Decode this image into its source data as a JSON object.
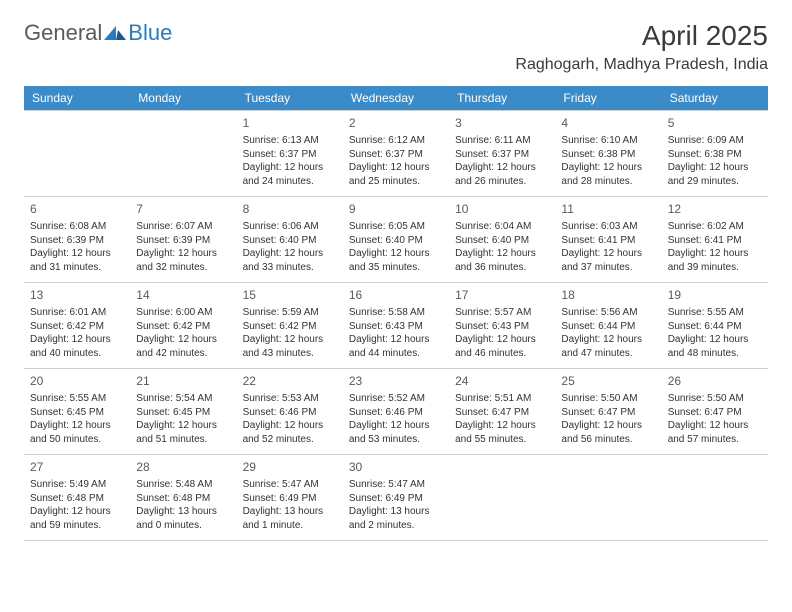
{
  "logo": {
    "text1": "General",
    "text2": "Blue"
  },
  "title": {
    "month": "April 2025",
    "location": "Raghogarh, Madhya Pradesh, India"
  },
  "colors": {
    "header_bg": "#3b8bc9",
    "header_text": "#ffffff",
    "border": "#cfcfcf",
    "body_text": "#333333",
    "daynum": "#5a5a5a",
    "logo_gray": "#5a5a5a",
    "logo_blue": "#2b7bbf"
  },
  "weekdays": [
    "Sunday",
    "Monday",
    "Tuesday",
    "Wednesday",
    "Thursday",
    "Friday",
    "Saturday"
  ],
  "weeks": [
    [
      null,
      null,
      {
        "day": "1",
        "sunrise": "Sunrise: 6:13 AM",
        "sunset": "Sunset: 6:37 PM",
        "daylight1": "Daylight: 12 hours",
        "daylight2": "and 24 minutes."
      },
      {
        "day": "2",
        "sunrise": "Sunrise: 6:12 AM",
        "sunset": "Sunset: 6:37 PM",
        "daylight1": "Daylight: 12 hours",
        "daylight2": "and 25 minutes."
      },
      {
        "day": "3",
        "sunrise": "Sunrise: 6:11 AM",
        "sunset": "Sunset: 6:37 PM",
        "daylight1": "Daylight: 12 hours",
        "daylight2": "and 26 minutes."
      },
      {
        "day": "4",
        "sunrise": "Sunrise: 6:10 AM",
        "sunset": "Sunset: 6:38 PM",
        "daylight1": "Daylight: 12 hours",
        "daylight2": "and 28 minutes."
      },
      {
        "day": "5",
        "sunrise": "Sunrise: 6:09 AM",
        "sunset": "Sunset: 6:38 PM",
        "daylight1": "Daylight: 12 hours",
        "daylight2": "and 29 minutes."
      }
    ],
    [
      {
        "day": "6",
        "sunrise": "Sunrise: 6:08 AM",
        "sunset": "Sunset: 6:39 PM",
        "daylight1": "Daylight: 12 hours",
        "daylight2": "and 31 minutes."
      },
      {
        "day": "7",
        "sunrise": "Sunrise: 6:07 AM",
        "sunset": "Sunset: 6:39 PM",
        "daylight1": "Daylight: 12 hours",
        "daylight2": "and 32 minutes."
      },
      {
        "day": "8",
        "sunrise": "Sunrise: 6:06 AM",
        "sunset": "Sunset: 6:40 PM",
        "daylight1": "Daylight: 12 hours",
        "daylight2": "and 33 minutes."
      },
      {
        "day": "9",
        "sunrise": "Sunrise: 6:05 AM",
        "sunset": "Sunset: 6:40 PM",
        "daylight1": "Daylight: 12 hours",
        "daylight2": "and 35 minutes."
      },
      {
        "day": "10",
        "sunrise": "Sunrise: 6:04 AM",
        "sunset": "Sunset: 6:40 PM",
        "daylight1": "Daylight: 12 hours",
        "daylight2": "and 36 minutes."
      },
      {
        "day": "11",
        "sunrise": "Sunrise: 6:03 AM",
        "sunset": "Sunset: 6:41 PM",
        "daylight1": "Daylight: 12 hours",
        "daylight2": "and 37 minutes."
      },
      {
        "day": "12",
        "sunrise": "Sunrise: 6:02 AM",
        "sunset": "Sunset: 6:41 PM",
        "daylight1": "Daylight: 12 hours",
        "daylight2": "and 39 minutes."
      }
    ],
    [
      {
        "day": "13",
        "sunrise": "Sunrise: 6:01 AM",
        "sunset": "Sunset: 6:42 PM",
        "daylight1": "Daylight: 12 hours",
        "daylight2": "and 40 minutes."
      },
      {
        "day": "14",
        "sunrise": "Sunrise: 6:00 AM",
        "sunset": "Sunset: 6:42 PM",
        "daylight1": "Daylight: 12 hours",
        "daylight2": "and 42 minutes."
      },
      {
        "day": "15",
        "sunrise": "Sunrise: 5:59 AM",
        "sunset": "Sunset: 6:42 PM",
        "daylight1": "Daylight: 12 hours",
        "daylight2": "and 43 minutes."
      },
      {
        "day": "16",
        "sunrise": "Sunrise: 5:58 AM",
        "sunset": "Sunset: 6:43 PM",
        "daylight1": "Daylight: 12 hours",
        "daylight2": "and 44 minutes."
      },
      {
        "day": "17",
        "sunrise": "Sunrise: 5:57 AM",
        "sunset": "Sunset: 6:43 PM",
        "daylight1": "Daylight: 12 hours",
        "daylight2": "and 46 minutes."
      },
      {
        "day": "18",
        "sunrise": "Sunrise: 5:56 AM",
        "sunset": "Sunset: 6:44 PM",
        "daylight1": "Daylight: 12 hours",
        "daylight2": "and 47 minutes."
      },
      {
        "day": "19",
        "sunrise": "Sunrise: 5:55 AM",
        "sunset": "Sunset: 6:44 PM",
        "daylight1": "Daylight: 12 hours",
        "daylight2": "and 48 minutes."
      }
    ],
    [
      {
        "day": "20",
        "sunrise": "Sunrise: 5:55 AM",
        "sunset": "Sunset: 6:45 PM",
        "daylight1": "Daylight: 12 hours",
        "daylight2": "and 50 minutes."
      },
      {
        "day": "21",
        "sunrise": "Sunrise: 5:54 AM",
        "sunset": "Sunset: 6:45 PM",
        "daylight1": "Daylight: 12 hours",
        "daylight2": "and 51 minutes."
      },
      {
        "day": "22",
        "sunrise": "Sunrise: 5:53 AM",
        "sunset": "Sunset: 6:46 PM",
        "daylight1": "Daylight: 12 hours",
        "daylight2": "and 52 minutes."
      },
      {
        "day": "23",
        "sunrise": "Sunrise: 5:52 AM",
        "sunset": "Sunset: 6:46 PM",
        "daylight1": "Daylight: 12 hours",
        "daylight2": "and 53 minutes."
      },
      {
        "day": "24",
        "sunrise": "Sunrise: 5:51 AM",
        "sunset": "Sunset: 6:47 PM",
        "daylight1": "Daylight: 12 hours",
        "daylight2": "and 55 minutes."
      },
      {
        "day": "25",
        "sunrise": "Sunrise: 5:50 AM",
        "sunset": "Sunset: 6:47 PM",
        "daylight1": "Daylight: 12 hours",
        "daylight2": "and 56 minutes."
      },
      {
        "day": "26",
        "sunrise": "Sunrise: 5:50 AM",
        "sunset": "Sunset: 6:47 PM",
        "daylight1": "Daylight: 12 hours",
        "daylight2": "and 57 minutes."
      }
    ],
    [
      {
        "day": "27",
        "sunrise": "Sunrise: 5:49 AM",
        "sunset": "Sunset: 6:48 PM",
        "daylight1": "Daylight: 12 hours",
        "daylight2": "and 59 minutes."
      },
      {
        "day": "28",
        "sunrise": "Sunrise: 5:48 AM",
        "sunset": "Sunset: 6:48 PM",
        "daylight1": "Daylight: 13 hours",
        "daylight2": "and 0 minutes."
      },
      {
        "day": "29",
        "sunrise": "Sunrise: 5:47 AM",
        "sunset": "Sunset: 6:49 PM",
        "daylight1": "Daylight: 13 hours",
        "daylight2": "and 1 minute."
      },
      {
        "day": "30",
        "sunrise": "Sunrise: 5:47 AM",
        "sunset": "Sunset: 6:49 PM",
        "daylight1": "Daylight: 13 hours",
        "daylight2": "and 2 minutes."
      },
      null,
      null,
      null
    ]
  ]
}
